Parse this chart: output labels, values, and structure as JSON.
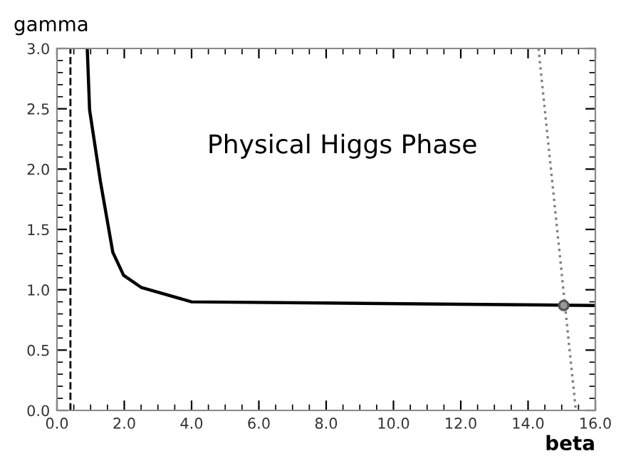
{
  "chart_data": {
    "type": "line",
    "xlabel": "beta",
    "ylabel": "gamma",
    "annotations": [
      "Physical Higgs Phase"
    ],
    "xlim": [
      0,
      16
    ],
    "ylim": [
      0,
      3.0
    ],
    "xticks": [
      {
        "value": 0,
        "label": "0.0"
      },
      {
        "value": 2,
        "label": "2.0"
      },
      {
        "value": 4,
        "label": "4.0"
      },
      {
        "value": 6,
        "label": "6.0"
      },
      {
        "value": 8,
        "label": "8.0"
      },
      {
        "value": 10,
        "label": "10.0"
      },
      {
        "value": 12,
        "label": "12.0"
      },
      {
        "value": 14,
        "label": "14.0"
      },
      {
        "value": 16,
        "label": "16.0"
      }
    ],
    "yticks": [
      {
        "value": 0,
        "label": "0.0"
      },
      0.5,
      {
        "value": 1,
        "label": "1.0"
      },
      1.5,
      {
        "value": 2,
        "label": "2.0"
      },
      2.5,
      {
        "value": 3,
        "label": "3.0"
      }
    ],
    "grid": false,
    "legend": false,
    "ref_lines": [
      {
        "axis": "x",
        "value": 0.4,
        "color": "#000000",
        "line_style": "dashed"
      }
    ],
    "series": [
      {
        "color": "#000000",
        "line_style": "solid",
        "marker": "none",
        "x": [
          0.9,
          0.97,
          1.29,
          1.66,
          1.98,
          2.5,
          4.0,
          8.0,
          12.0,
          16.0
        ],
        "values": [
          3.0,
          2.49,
          1.9,
          1.31,
          1.12,
          1.02,
          0.9,
          0.89,
          0.88,
          0.87
        ]
      },
      {
        "type": "line",
        "color": "#808080",
        "line_style": "dotted",
        "marker": "none",
        "x": [
          14.31,
          15.42
        ],
        "values": [
          3.0,
          0.0
        ]
      },
      {
        "type": "scatter",
        "color": "#555555",
        "marker": "circle",
        "x": [
          15.06
        ],
        "values": [
          0.87
        ]
      }
    ]
  }
}
